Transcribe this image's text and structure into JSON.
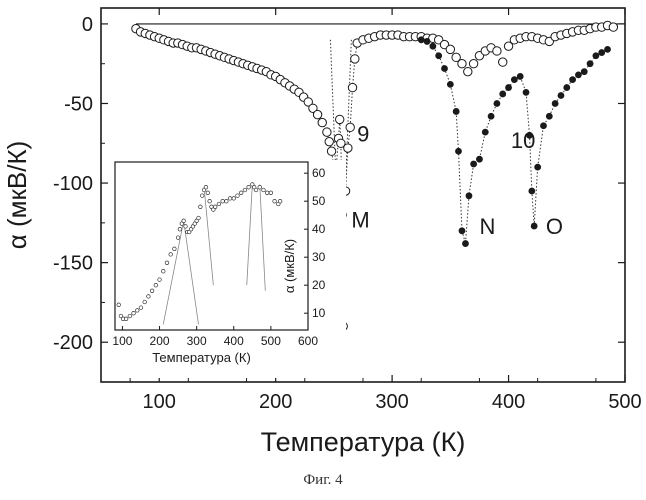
{
  "caption": "Фиг. 4",
  "chart_data": [
    {
      "type": "scatter",
      "xlabel": "Температура (К)",
      "ylabel": "α (мкВ/К)",
      "xlim": [
        50,
        500
      ],
      "ylim": [
        -225,
        10
      ],
      "xticks": [
        100,
        200,
        300,
        400,
        500
      ],
      "yticks": [
        0,
        -50,
        -100,
        -150,
        -200
      ],
      "grid": false,
      "hline": 0,
      "annotations": [
        {
          "text": "9",
          "x": 270,
          "y": -74
        },
        {
          "text": "10",
          "x": 402,
          "y": -78
        },
        {
          "text": "M",
          "x": 265,
          "y": -128
        },
        {
          "text": "N",
          "x": 375,
          "y": -132
        },
        {
          "text": "O",
          "x": 432,
          "y": -132
        }
      ],
      "series": [
        {
          "marker": "open-circle",
          "points": [
            [
              80,
              -3
            ],
            [
              84,
              -5
            ],
            [
              88,
              -6
            ],
            [
              92,
              -7
            ],
            [
              96,
              -8
            ],
            [
              100,
              -9
            ],
            [
              104,
              -10
            ],
            [
              108,
              -11
            ],
            [
              112,
              -12
            ],
            [
              116,
              -12
            ],
            [
              120,
              -13
            ],
            [
              124,
              -14
            ],
            [
              128,
              -15
            ],
            [
              132,
              -15
            ],
            [
              136,
              -16
            ],
            [
              140,
              -17
            ],
            [
              144,
              -18
            ],
            [
              148,
              -19
            ],
            [
              152,
              -20
            ],
            [
              156,
              -21
            ],
            [
              160,
              -22
            ],
            [
              164,
              -23
            ],
            [
              168,
              -24
            ],
            [
              172,
              -25
            ],
            [
              176,
              -26
            ],
            [
              180,
              -27
            ],
            [
              184,
              -28
            ],
            [
              188,
              -29
            ],
            [
              192,
              -30
            ],
            [
              196,
              -32
            ],
            [
              200,
              -33
            ],
            [
              204,
              -35
            ],
            [
              208,
              -37
            ],
            [
              212,
              -39
            ],
            [
              216,
              -41
            ],
            [
              220,
              -43
            ],
            [
              224,
              -46
            ],
            [
              228,
              -49
            ],
            [
              232,
              -53
            ],
            [
              236,
              -57
            ],
            [
              240,
              -62
            ],
            [
              244,
              -68
            ],
            [
              246,
              -74
            ],
            [
              248,
              -80
            ],
            [
              250,
              -90
            ],
            [
              251,
              -116
            ],
            [
              252,
              -90
            ],
            [
              254,
              -72
            ],
            [
              255,
              -60
            ],
            [
              256,
              -75
            ],
            [
              257,
              -120
            ],
            [
              258,
              -190
            ],
            [
              260,
              -105
            ],
            [
              262,
              -78
            ],
            [
              264,
              -65
            ],
            [
              266,
              -40
            ],
            [
              268,
              -22
            ],
            [
              270,
              -12
            ],
            [
              275,
              -10
            ],
            [
              280,
              -9
            ],
            [
              285,
              -8
            ],
            [
              290,
              -7
            ],
            [
              295,
              -7
            ],
            [
              300,
              -7
            ],
            [
              305,
              -7
            ],
            [
              310,
              -8
            ],
            [
              315,
              -8
            ],
            [
              320,
              -8
            ],
            [
              325,
              -8
            ],
            [
              330,
              -9
            ],
            [
              335,
              -9
            ],
            [
              340,
              -10
            ],
            [
              345,
              -13
            ],
            [
              350,
              -16
            ],
            [
              355,
              -21
            ],
            [
              360,
              -25
            ],
            [
              365,
              -30
            ],
            [
              370,
              -25
            ],
            [
              375,
              -20
            ],
            [
              380,
              -17
            ],
            [
              385,
              -15
            ],
            [
              390,
              -17
            ],
            [
              395,
              -24
            ],
            [
              400,
              -14
            ],
            [
              405,
              -10
            ],
            [
              410,
              -9
            ],
            [
              415,
              -8
            ],
            [
              420,
              -8
            ],
            [
              425,
              -9
            ],
            [
              430,
              -10
            ],
            [
              435,
              -11
            ],
            [
              440,
              -8
            ],
            [
              445,
              -7
            ],
            [
              450,
              -6
            ],
            [
              455,
              -5
            ],
            [
              460,
              -4
            ],
            [
              465,
              -4
            ],
            [
              470,
              -3
            ],
            [
              475,
              -2
            ],
            [
              480,
              -2
            ],
            [
              485,
              -1
            ],
            [
              490,
              -2
            ]
          ]
        },
        {
          "marker": "filled-circle",
          "points": [
            [
              325,
              -10
            ],
            [
              330,
              -11
            ],
            [
              335,
              -14
            ],
            [
              340,
              -20
            ],
            [
              345,
              -28
            ],
            [
              350,
              -38
            ],
            [
              355,
              -55
            ],
            [
              357,
              -80
            ],
            [
              360,
              -130
            ],
            [
              363,
              -138
            ],
            [
              366,
              -108
            ],
            [
              370,
              -88
            ],
            [
              375,
              -85
            ],
            [
              380,
              -68
            ],
            [
              385,
              -58
            ],
            [
              390,
              -50
            ],
            [
              395,
              -44
            ],
            [
              400,
              -40
            ],
            [
              405,
              -35
            ],
            [
              410,
              -33
            ],
            [
              415,
              -43
            ],
            [
              418,
              -70
            ],
            [
              420,
              -105
            ],
            [
              422,
              -127
            ],
            [
              425,
              -90
            ],
            [
              430,
              -64
            ],
            [
              435,
              -58
            ],
            [
              440,
              -50
            ],
            [
              445,
              -45
            ],
            [
              450,
              -40
            ],
            [
              455,
              -35
            ],
            [
              460,
              -32
            ],
            [
              465,
              -30
            ],
            [
              470,
              -25
            ],
            [
              475,
              -20
            ],
            [
              480,
              -18
            ],
            [
              485,
              -16
            ]
          ]
        }
      ]
    },
    {
      "type": "scatter",
      "role": "inset",
      "xlabel": "Температура (К)",
      "ylabel": "α (мкВ/К)",
      "xlim": [
        80,
        600
      ],
      "ylim": [
        4,
        64
      ],
      "xticks": [
        100,
        200,
        300,
        400,
        500,
        600
      ],
      "yticks": [
        10,
        20,
        30,
        40,
        50,
        60
      ],
      "grid": false,
      "series": [
        {
          "marker": "open-circle-small",
          "points": [
            [
              90,
              13
            ],
            [
              96,
              9
            ],
            [
              102,
              8
            ],
            [
              110,
              8
            ],
            [
              120,
              9
            ],
            [
              130,
              10
            ],
            [
              140,
              11
            ],
            [
              150,
              12
            ],
            [
              160,
              14
            ],
            [
              170,
              16
            ],
            [
              180,
              18
            ],
            [
              190,
              20
            ],
            [
              200,
              22
            ],
            [
              210,
              25
            ],
            [
              220,
              28
            ],
            [
              230,
              31
            ],
            [
              240,
              33
            ],
            [
              250,
              37
            ],
            [
              255,
              40
            ],
            [
              260,
              42
            ],
            [
              265,
              43
            ],
            [
              270,
              41
            ],
            [
              275,
              39
            ],
            [
              280,
              39
            ],
            [
              285,
              40
            ],
            [
              290,
              41
            ],
            [
              295,
              42
            ],
            [
              300,
              43
            ],
            [
              305,
              44
            ],
            [
              310,
              48
            ],
            [
              315,
              52
            ],
            [
              320,
              54
            ],
            [
              325,
              55
            ],
            [
              330,
              53
            ],
            [
              335,
              50
            ],
            [
              340,
              48
            ],
            [
              345,
              47
            ],
            [
              350,
              48
            ],
            [
              360,
              49
            ],
            [
              370,
              50
            ],
            [
              380,
              50
            ],
            [
              390,
              51
            ],
            [
              400,
              51
            ],
            [
              410,
              52
            ],
            [
              420,
              53
            ],
            [
              430,
              54
            ],
            [
              440,
              55
            ],
            [
              450,
              56
            ],
            [
              455,
              55
            ],
            [
              460,
              54
            ],
            [
              470,
              55
            ],
            [
              480,
              54
            ],
            [
              490,
              53
            ],
            [
              500,
              53
            ],
            [
              510,
              50
            ],
            [
              520,
              49
            ],
            [
              525,
              50
            ]
          ]
        }
      ],
      "guides": [
        [
          [
            210,
            6
          ],
          [
            265,
            43
          ]
        ],
        [
          [
            265,
            43
          ],
          [
            305,
            6
          ]
        ],
        [
          [
            320,
            55
          ],
          [
            345,
            20
          ]
        ],
        [
          [
            450,
            56
          ],
          [
            435,
            20
          ]
        ],
        [
          [
            470,
            56
          ],
          [
            485,
            18
          ]
        ]
      ]
    }
  ]
}
